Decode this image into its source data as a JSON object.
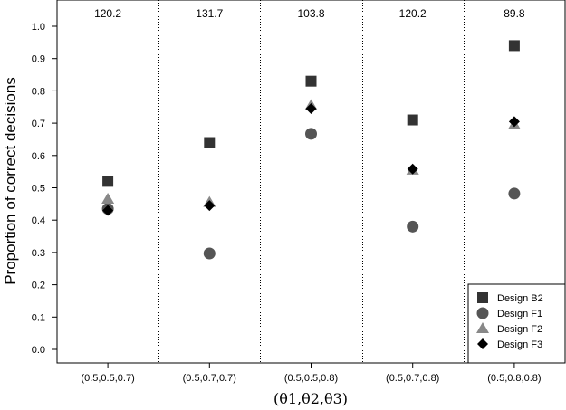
{
  "chart_data": {
    "type": "scatter",
    "xlabel": "(θ1,θ2,θ3)",
    "ylabel": "Proportion of correct decisions",
    "categories": [
      "(0.5,0.5,0.7)",
      "(0.5,0.7,0.7)",
      "(0.5,0.5,0.8)",
      "(0.5,0.7,0.8)",
      "(0.5,0.8,0.8)"
    ],
    "annotations": [
      "120.2",
      "131.7",
      "103.8",
      "120.2",
      "89.8"
    ],
    "ylim": [
      -0.04,
      1.08
    ],
    "yticks": [
      "0.0",
      "0.1",
      "0.2",
      "0.3",
      "0.4",
      "0.5",
      "0.6",
      "0.7",
      "0.8",
      "0.9",
      "1.0"
    ],
    "grid": false,
    "legend_position": "bottom-right",
    "series": [
      {
        "name": "Design B2",
        "marker": "square",
        "color": "#333333",
        "values": [
          0.52,
          0.64,
          0.83,
          0.71,
          0.94
        ]
      },
      {
        "name": "Design F1",
        "marker": "circle",
        "color": "#555555",
        "values": [
          0.435,
          0.297,
          0.667,
          0.38,
          0.482
        ]
      },
      {
        "name": "Design F2",
        "marker": "triangle",
        "color": "#888888",
        "values": [
          0.465,
          0.455,
          0.755,
          0.555,
          0.695
        ]
      },
      {
        "name": "Design F3",
        "marker": "diamond",
        "color": "#000000",
        "values": [
          0.43,
          0.445,
          0.745,
          0.558,
          0.705
        ]
      }
    ]
  }
}
